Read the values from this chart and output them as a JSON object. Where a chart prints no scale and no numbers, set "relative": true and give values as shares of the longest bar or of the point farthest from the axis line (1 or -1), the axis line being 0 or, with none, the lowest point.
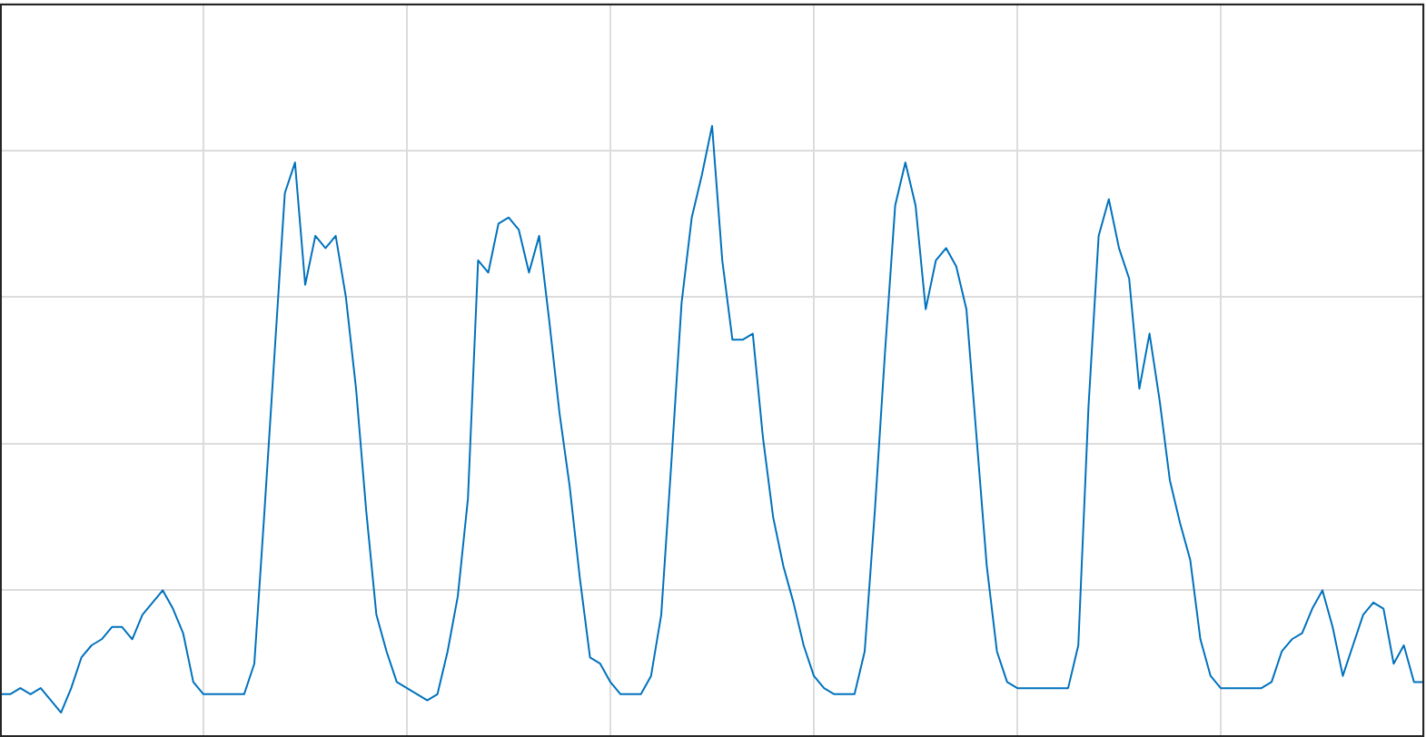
{
  "chart_data": {
    "type": "line",
    "relative": true,
    "grid": true,
    "tick_labels": false,
    "legend": false,
    "marker": "none",
    "line_style": "solid",
    "categories": [
      null,
      null,
      null,
      null,
      null,
      null,
      null,
      null,
      null,
      null,
      null,
      null,
      null,
      null,
      null,
      null,
      null,
      null,
      null,
      null,
      null,
      null,
      null,
      null,
      null,
      null,
      null,
      null,
      null,
      null,
      null,
      null,
      null,
      null,
      null,
      null,
      null,
      null,
      null,
      null,
      null,
      null,
      null,
      null,
      null,
      null,
      null,
      null,
      null,
      null,
      null,
      null,
      null,
      null,
      null,
      null,
      null,
      null,
      null,
      null,
      null,
      null,
      null,
      null,
      null,
      null,
      null,
      null,
      null,
      null,
      null,
      null,
      null,
      null,
      null,
      null,
      null,
      null,
      null,
      null,
      null,
      null,
      null,
      null,
      null,
      null,
      null,
      null,
      null,
      null,
      null,
      null,
      null,
      null,
      null,
      null,
      null,
      null,
      null,
      null,
      null,
      null,
      null,
      null,
      null,
      null,
      null,
      null,
      null,
      null,
      null,
      null,
      null,
      null,
      null,
      null,
      null,
      null,
      null,
      null,
      null,
      null,
      null,
      null,
      null,
      null,
      null,
      null,
      null,
      null,
      null,
      null,
      null,
      null,
      null,
      null,
      null,
      null,
      null,
      null,
      null
    ],
    "series": [
      {
        "color": "#0072bd",
        "values": [
          0.07,
          0.07,
          0.08,
          0.07,
          0.08,
          0.06,
          0.04,
          0.08,
          0.13,
          0.15,
          0.16,
          0.18,
          0.18,
          0.16,
          0.2,
          0.22,
          0.24,
          0.21,
          0.17,
          0.09,
          0.07,
          0.07,
          0.07,
          0.07,
          0.07,
          0.12,
          0.37,
          0.63,
          0.89,
          0.94,
          0.74,
          0.82,
          0.8,
          0.82,
          0.72,
          0.57,
          0.37,
          0.2,
          0.14,
          0.09,
          0.08,
          0.07,
          0.06,
          0.07,
          0.14,
          0.23,
          0.39,
          0.78,
          0.76,
          0.84,
          0.85,
          0.83,
          0.76,
          0.82,
          0.68,
          0.53,
          0.41,
          0.26,
          0.13,
          0.12,
          0.09,
          0.07,
          0.07,
          0.07,
          0.1,
          0.2,
          0.45,
          0.71,
          0.85,
          0.92,
          1.0,
          0.78,
          0.65,
          0.65,
          0.66,
          0.49,
          0.36,
          0.28,
          0.22,
          0.15,
          0.1,
          0.08,
          0.07,
          0.07,
          0.07,
          0.14,
          0.37,
          0.63,
          0.87,
          0.94,
          0.87,
          0.7,
          0.78,
          0.8,
          0.77,
          0.7,
          0.49,
          0.28,
          0.14,
          0.09,
          0.08,
          0.08,
          0.08,
          0.08,
          0.08,
          0.08,
          0.15,
          0.54,
          0.82,
          0.88,
          0.8,
          0.75,
          0.57,
          0.66,
          0.55,
          0.42,
          0.35,
          0.29,
          0.16,
          0.1,
          0.08,
          0.08,
          0.08,
          0.08,
          0.08,
          0.09,
          0.14,
          0.16,
          0.17,
          0.21,
          0.24,
          0.18,
          0.1,
          0.15,
          0.2,
          0.22,
          0.21,
          0.12,
          0.15,
          0.09,
          0.09
        ]
      }
    ]
  }
}
